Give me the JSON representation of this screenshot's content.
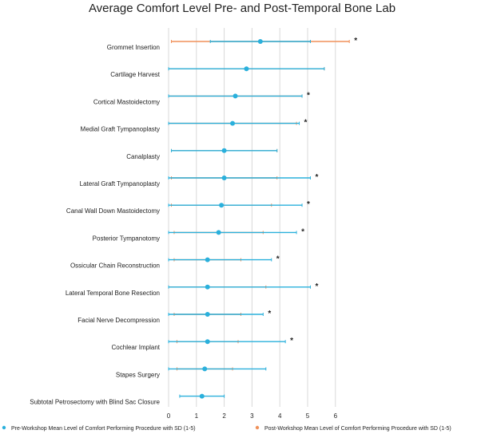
{
  "chart_data": {
    "type": "dot-errorbar",
    "title": "Average Comfort Level Pre- and Post-Temporal Bone Lab",
    "xlim": [
      0,
      7
    ],
    "xticks": [
      "0",
      "1",
      "2",
      "3",
      "4",
      "5",
      "6"
    ],
    "grid": true,
    "legend_position": "bottom",
    "series": [
      {
        "name": "Pre-Workshop Mean Level of Comfort Performing Procedure with SD (1-5)",
        "color": "#2ab0dc"
      },
      {
        "name": "Post-Workshop Mean Level of Comfort Performing Procedure with SD (1-5)",
        "color": "#f0915a"
      }
    ],
    "significance_marker": "*",
    "procedures": [
      {
        "label": "Grommet Insertion",
        "pre": 3.3,
        "pre_sd": 1.8,
        "post": 3.3,
        "post_sd": 3.2,
        "significant": true
      },
      {
        "label": "Cartilage Harvest",
        "pre": 2.8,
        "pre_sd": 2.8,
        "post": 2.8,
        "post_sd": 2.8,
        "significant": false
      },
      {
        "label": "Cortical Mastoidectomy",
        "pre": 2.4,
        "pre_sd": 2.4,
        "post": 2.4,
        "post_sd": 2.4,
        "significant": true
      },
      {
        "label": "Medial Graft Tympanoplasty",
        "pre": 2.3,
        "pre_sd": 2.4,
        "post": 2.3,
        "post_sd": 2.3,
        "significant": true
      },
      {
        "label": "Canalplasty",
        "pre": 2.0,
        "pre_sd": 1.9,
        "post": 2.0,
        "post_sd": 1.9,
        "significant": false
      },
      {
        "label": "Lateral Graft Tympanoplasty",
        "pre": 2.0,
        "pre_sd": 3.1,
        "post": 2.0,
        "post_sd": 1.9,
        "significant": true
      },
      {
        "label": "Canal Wall Down Mastoidectomy",
        "pre": 1.9,
        "pre_sd": 2.9,
        "post": 1.9,
        "post_sd": 1.8,
        "significant": true
      },
      {
        "label": "Posterior Tympanotomy",
        "pre": 1.8,
        "pre_sd": 2.8,
        "post": 1.8,
        "post_sd": 1.6,
        "significant": true
      },
      {
        "label": "Ossicular Chain Reconstruction",
        "pre": 1.4,
        "pre_sd": 2.3,
        "post": 1.4,
        "post_sd": 1.2,
        "significant": true
      },
      {
        "label": "Lateral Temporal Bone Resection",
        "pre": 1.4,
        "pre_sd": 3.7,
        "post": 1.4,
        "post_sd": 2.1,
        "significant": true
      },
      {
        "label": "Facial Nerve Decompression",
        "pre": 1.4,
        "pre_sd": 2.0,
        "post": 1.4,
        "post_sd": 1.2,
        "significant": true
      },
      {
        "label": "Cochlear Implant",
        "pre": 1.4,
        "pre_sd": 2.8,
        "post": 1.4,
        "post_sd": 1.1,
        "significant": true
      },
      {
        "label": "Stapes Surgery",
        "pre": 1.3,
        "pre_sd": 2.2,
        "post": 1.3,
        "post_sd": 1.0,
        "significant": false
      },
      {
        "label": "Subtotal Petrosectomy with Blind Sac Closure",
        "pre": 1.2,
        "pre_sd": 0.8,
        "post": 1.2,
        "post_sd": 0.0,
        "significant": false
      }
    ]
  }
}
